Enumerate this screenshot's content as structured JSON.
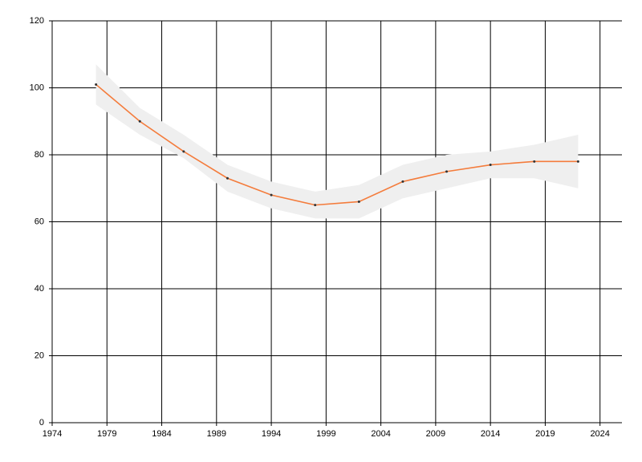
{
  "chart_data": {
    "type": "line",
    "x": [
      1978,
      1982,
      1986,
      1990,
      1994,
      1998,
      2002,
      2006,
      2010,
      2014,
      2018,
      2022
    ],
    "series": [
      {
        "color": "#f47c3c",
        "values": [
          101,
          90,
          81,
          73,
          68,
          65,
          66,
          72,
          75,
          77,
          78,
          78
        ],
        "upper": [
          107,
          94,
          86,
          77,
          72,
          69,
          71,
          77,
          80,
          81,
          83,
          86
        ],
        "lower": [
          95,
          86,
          79,
          69,
          64,
          61,
          61,
          67,
          70,
          73,
          73,
          70
        ],
        "band_color": "#efefef"
      }
    ],
    "xlim": [
      1974,
      2026
    ],
    "xticks": [
      1974,
      1979,
      1984,
      1989,
      1994,
      1999,
      2004,
      2009,
      2014,
      2019,
      2024
    ],
    "ylim": [
      0,
      120
    ],
    "yticks": [
      0,
      20,
      40,
      60,
      80,
      100,
      120
    ],
    "grid": true
  }
}
